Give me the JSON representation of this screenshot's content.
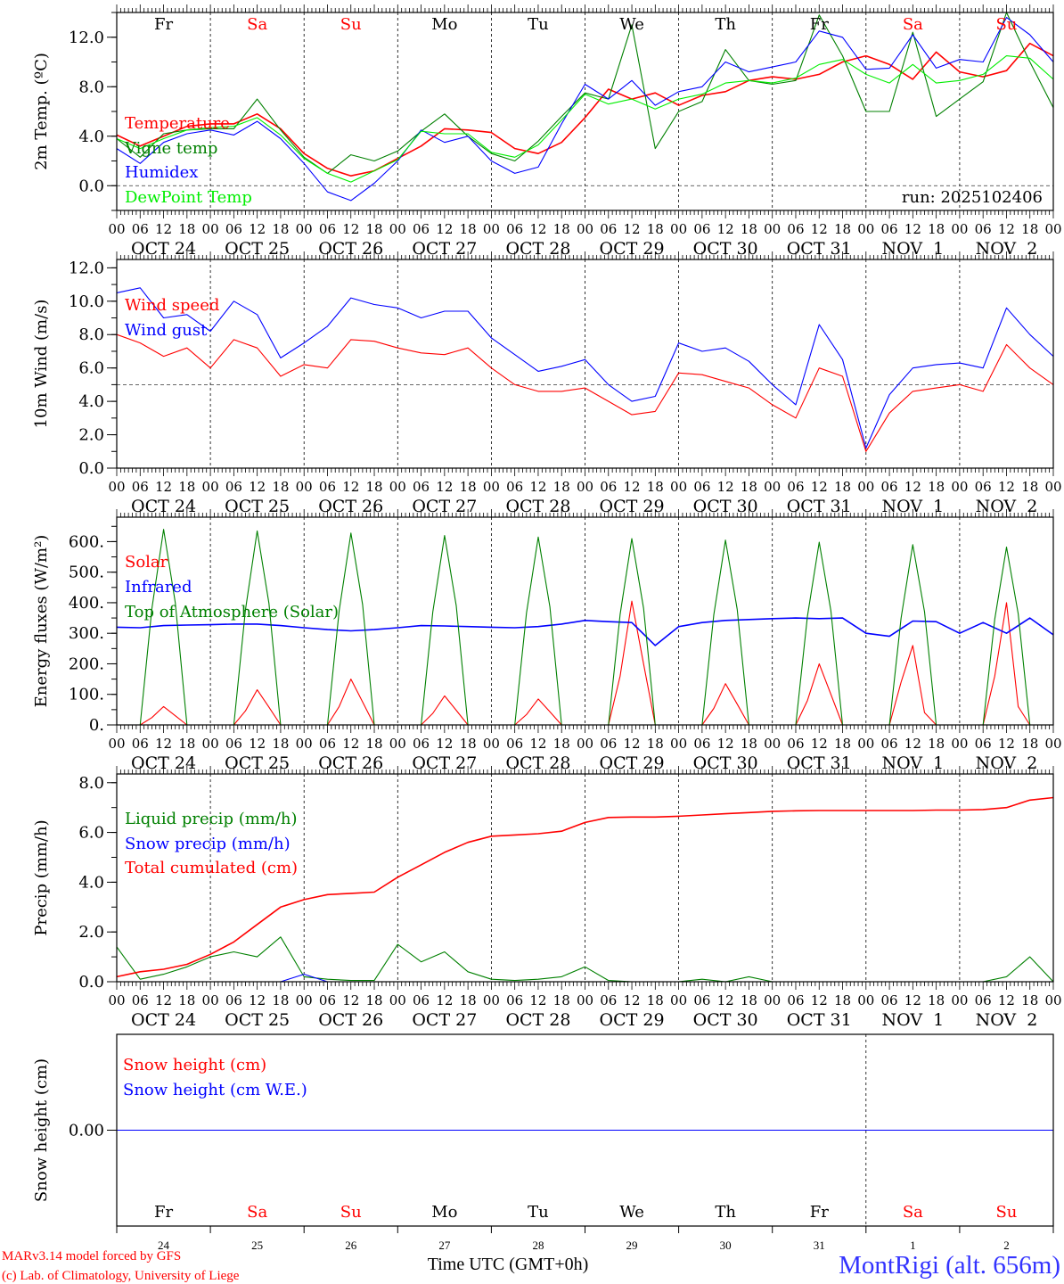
{
  "colors": {
    "red": "#ff0000",
    "blue": "#0000ff",
    "green": "#008000",
    "lime": "#00ee00",
    "black": "#000000"
  },
  "x_axis": {
    "hour_labels": [
      "00",
      "06",
      "12",
      "18"
    ],
    "end_label": "00",
    "days": [
      {
        "name": "Fr",
        "date": "OCT 24",
        "num": "24",
        "weekend": false
      },
      {
        "name": "Sa",
        "date": "OCT 25",
        "num": "25",
        "weekend": true
      },
      {
        "name": "Su",
        "date": "OCT 26",
        "num": "26",
        "weekend": true
      },
      {
        "name": "Mo",
        "date": "OCT 27",
        "num": "27",
        "weekend": false
      },
      {
        "name": "Tu",
        "date": "OCT 28",
        "num": "28",
        "weekend": false
      },
      {
        "name": "We",
        "date": "OCT 29",
        "num": "29",
        "weekend": false
      },
      {
        "name": "Th",
        "date": "OCT 30",
        "num": "30",
        "weekend": false
      },
      {
        "name": "Fr",
        "date": "OCT 31",
        "num": "31",
        "weekend": false
      },
      {
        "name": "Sa",
        "date": "NOV  1",
        "num": "1",
        "weekend": true
      },
      {
        "name": "Su",
        "date": "NOV  2",
        "num": "2",
        "weekend": true
      }
    ],
    "title": "Time UTC (GMT+0h)"
  },
  "footer": {
    "model": "MARv3.14 model forced by GFS",
    "credit": "(c) Lab. of Climatology, University of Liege",
    "station": "MontRigi (alt. 656m)"
  },
  "chart_data": [
    {
      "type": "line",
      "id": "temp",
      "ylabel": "2m Temp. (ºC)",
      "ylim": [
        -2,
        14
      ],
      "yticks": [
        0,
        4,
        8,
        12
      ],
      "ytick_labels": [
        "0.0",
        "4.0",
        "8.0",
        "12.0"
      ],
      "yminor": 2,
      "ref_line": 0,
      "annotation": "run: 2025102406",
      "x_hours_step": 6,
      "series": [
        {
          "name": "Temperature",
          "color": "#ff0000",
          "values": [
            4.1,
            3.2,
            4.0,
            4.8,
            5.0,
            5.0,
            5.8,
            4.6,
            2.6,
            1.4,
            0.8,
            1.2,
            2.2,
            3.2,
            4.6,
            4.5,
            4.3,
            3.0,
            2.6,
            3.5,
            5.5,
            7.8,
            7.0,
            7.5,
            6.5,
            7.3,
            7.6,
            8.5,
            8.8,
            8.6,
            9.0,
            10.0,
            10.5,
            9.8,
            8.6,
            10.8,
            9.2,
            8.8,
            9.3,
            11.5,
            10.5
          ]
        },
        {
          "name": "Vigne temp",
          "color": "#008000",
          "values": [
            3.8,
            2.3,
            4.2,
            4.5,
            4.6,
            4.6,
            7.0,
            4.5,
            2.3,
            1.0,
            2.5,
            2.0,
            2.8,
            4.4,
            5.8,
            4.0,
            2.6,
            2.0,
            3.6,
            5.6,
            7.5,
            7.0,
            13.0,
            3.0,
            6.0,
            6.8,
            11.0,
            8.5,
            8.2,
            8.5,
            13.8,
            10.5,
            6.0,
            6.0,
            12.4,
            5.6,
            7.0,
            8.4,
            14.0,
            10.0,
            6.3
          ]
        },
        {
          "name": "Humidex",
          "color": "#0000ff",
          "values": [
            3.0,
            1.8,
            3.5,
            4.2,
            4.5,
            4.1,
            5.2,
            3.8,
            1.8,
            -0.5,
            -1.2,
            0.2,
            2.0,
            4.5,
            3.5,
            4.0,
            2.0,
            1.0,
            1.5,
            5.0,
            8.2,
            7.0,
            8.5,
            6.5,
            7.6,
            8.0,
            10.0,
            9.2,
            9.6,
            10.0,
            12.5,
            12.0,
            9.4,
            9.5,
            12.2,
            9.5,
            10.2,
            10.0,
            13.6,
            12.2,
            10.0
          ]
        },
        {
          "name": "DewPoint Temp",
          "color": "#00ee00",
          "values": [
            3.8,
            3.0,
            3.8,
            4.5,
            4.7,
            4.8,
            5.5,
            4.1,
            2.2,
            1.0,
            0.3,
            1.2,
            2.1,
            4.4,
            4.2,
            4.2,
            2.7,
            2.3,
            3.3,
            5.3,
            7.4,
            6.6,
            7.0,
            6.2,
            7.0,
            7.4,
            8.3,
            8.5,
            8.3,
            8.7,
            9.8,
            10.2,
            9.0,
            8.3,
            9.8,
            8.3,
            8.5,
            9.0,
            10.5,
            10.3,
            8.6
          ]
        }
      ]
    },
    {
      "type": "line",
      "id": "wind",
      "ylabel": "10m Wind (m/s)",
      "ylim": [
        0,
        12.5
      ],
      "yticks": [
        0,
        2,
        4,
        6,
        8,
        10,
        12
      ],
      "ytick_labels": [
        "0.0",
        "2.0",
        "4.0",
        "6.0",
        "8.0",
        "10.0",
        "12.0"
      ],
      "yminor": 1,
      "ref_line": 5,
      "x_hours_step": 6,
      "series": [
        {
          "name": "Wind speed",
          "color": "#ff0000",
          "values": [
            8.0,
            7.5,
            6.7,
            7.2,
            6.0,
            7.7,
            7.2,
            5.5,
            6.2,
            6.0,
            7.7,
            7.6,
            7.2,
            6.9,
            6.8,
            7.2,
            6.0,
            5.0,
            4.6,
            4.6,
            4.8,
            4.0,
            3.2,
            3.4,
            5.7,
            5.6,
            5.2,
            4.8,
            3.8,
            3.0,
            6.0,
            5.5,
            1.0,
            3.3,
            4.6,
            4.8,
            5.0,
            4.6,
            7.4,
            6.0,
            5.0
          ]
        },
        {
          "name": "Wind gust",
          "color": "#0000ff",
          "values": [
            10.5,
            10.8,
            9.0,
            9.2,
            8.2,
            10.0,
            9.2,
            6.6,
            7.5,
            8.5,
            10.2,
            9.8,
            9.6,
            9.0,
            9.4,
            9.4,
            7.8,
            6.8,
            5.8,
            6.1,
            6.5,
            5.0,
            4.0,
            4.3,
            7.5,
            7.0,
            7.2,
            6.4,
            5.0,
            3.8,
            8.6,
            6.5,
            1.2,
            4.4,
            6.0,
            6.2,
            6.3,
            6.0,
            9.6,
            8.0,
            6.7
          ]
        }
      ]
    },
    {
      "type": "line",
      "id": "energy",
      "ylabel": "Energy fluxes (W/m²)",
      "ylim": [
        0,
        680
      ],
      "yticks": [
        0,
        100,
        200,
        300,
        400,
        500,
        600
      ],
      "ytick_labels": [
        "0.",
        "100.",
        "200.",
        "300.",
        "400.",
        "500.",
        "600."
      ],
      "yminor": 50,
      "series": [
        {
          "name": "Solar",
          "color": "#ff0000",
          "x_hours_step": 3,
          "values": [
            0,
            0,
            0,
            24,
            60,
            30,
            0,
            0,
            0,
            0,
            0,
            46,
            115,
            58,
            0,
            0,
            0,
            0,
            0,
            60,
            150,
            75,
            0,
            0,
            0,
            0,
            0,
            38,
            95,
            48,
            0,
            0,
            0,
            0,
            0,
            34,
            85,
            43,
            0,
            0,
            0,
            0,
            0,
            160,
            405,
            200,
            0,
            0,
            0,
            0,
            0,
            54,
            135,
            68,
            0,
            0,
            0,
            0,
            0,
            80,
            200,
            100,
            0,
            0,
            0,
            0,
            0,
            140,
            260,
            40,
            0,
            0,
            0,
            0,
            0,
            160,
            400,
            60,
            0,
            0,
            0
          ]
        },
        {
          "name": "Infrared",
          "color": "#0000ff",
          "x_hours_step": 6,
          "values": [
            320,
            318,
            325,
            327,
            328,
            330,
            330,
            325,
            318,
            312,
            308,
            312,
            318,
            325,
            324,
            322,
            320,
            318,
            322,
            330,
            342,
            338,
            335,
            260,
            322,
            335,
            342,
            345,
            348,
            350,
            348,
            350,
            300,
            290,
            340,
            338,
            300,
            335,
            300,
            350,
            295
          ]
        },
        {
          "name": "Top of Atmosphere (Solar)",
          "color": "#008000",
          "x_hours_step": 3,
          "values": [
            0,
            0,
            0,
            380,
            640,
            400,
            0,
            0,
            0,
            0,
            0,
            378,
            635,
            398,
            0,
            0,
            0,
            0,
            0,
            374,
            628,
            394,
            0,
            0,
            0,
            0,
            0,
            370,
            620,
            390,
            0,
            0,
            0,
            0,
            0,
            366,
            615,
            386,
            0,
            0,
            0,
            0,
            0,
            362,
            610,
            382,
            0,
            0,
            0,
            0,
            0,
            360,
            605,
            378,
            0,
            0,
            0,
            0,
            0,
            356,
            598,
            374,
            0,
            0,
            0,
            0,
            0,
            350,
            590,
            370,
            0,
            0,
            0,
            0,
            0,
            346,
            582,
            364,
            0,
            0,
            0
          ]
        }
      ]
    },
    {
      "type": "line",
      "id": "precip",
      "ylabel": "Precip (mm/h)",
      "ylim": [
        0,
        8.35
      ],
      "yticks": [
        0,
        2,
        4,
        6,
        8
      ],
      "ytick_labels": [
        "0.0",
        "2.0",
        "4.0",
        "6.0",
        "8.0"
      ],
      "yminor": 1,
      "x_hours_step": 6,
      "series": [
        {
          "name": "Liquid precip (mm/h)",
          "color": "#008000",
          "values": [
            1.4,
            0.1,
            0.3,
            0.6,
            1.0,
            1.2,
            1.0,
            1.8,
            0.2,
            0.1,
            0.05,
            0.05,
            1.5,
            0.8,
            1.2,
            0.4,
            0.1,
            0.05,
            0.1,
            0.2,
            0.6,
            0.05,
            0,
            0,
            0,
            0.1,
            0,
            0.2,
            0,
            0,
            0,
            0,
            0,
            0,
            0,
            0,
            0,
            0,
            0.2,
            1.0,
            0
          ]
        },
        {
          "name": "Snow precip (mm/h)",
          "color": "#0000ff",
          "values": [
            0,
            0,
            0,
            0,
            0,
            0,
            0,
            0,
            0.3,
            0,
            0,
            0,
            0,
            0,
            0,
            0,
            0,
            0,
            0,
            0,
            0,
            0,
            0,
            0,
            0,
            0,
            0,
            0,
            0,
            0,
            0,
            0,
            0,
            0,
            0,
            0,
            0,
            0,
            0,
            0,
            0
          ]
        },
        {
          "name": "Total cumulated (cm)",
          "color": "#ff0000",
          "values": [
            0.2,
            0.4,
            0.5,
            0.7,
            1.1,
            1.6,
            2.3,
            3.0,
            3.3,
            3.5,
            3.55,
            3.6,
            4.2,
            4.7,
            5.2,
            5.6,
            5.85,
            5.9,
            5.95,
            6.05,
            6.4,
            6.6,
            6.62,
            6.62,
            6.65,
            6.7,
            6.75,
            6.8,
            6.85,
            6.87,
            6.88,
            6.88,
            6.88,
            6.88,
            6.88,
            6.9,
            6.9,
            6.92,
            7.0,
            7.3,
            7.4
          ]
        }
      ]
    },
    {
      "type": "line",
      "id": "snow",
      "ylabel": "Snow height (cm)",
      "ylim": [
        -1,
        1
      ],
      "yticks": [
        0
      ],
      "ytick_labels": [
        "0.00"
      ],
      "x_hours_step": 240,
      "series": [
        {
          "name": "Snow height (cm)",
          "color": "#ff0000",
          "values": [
            0,
            0
          ]
        },
        {
          "name": "Snow height (cm W.E.)",
          "color": "#0000ff",
          "values": [
            0,
            0
          ]
        }
      ]
    }
  ]
}
